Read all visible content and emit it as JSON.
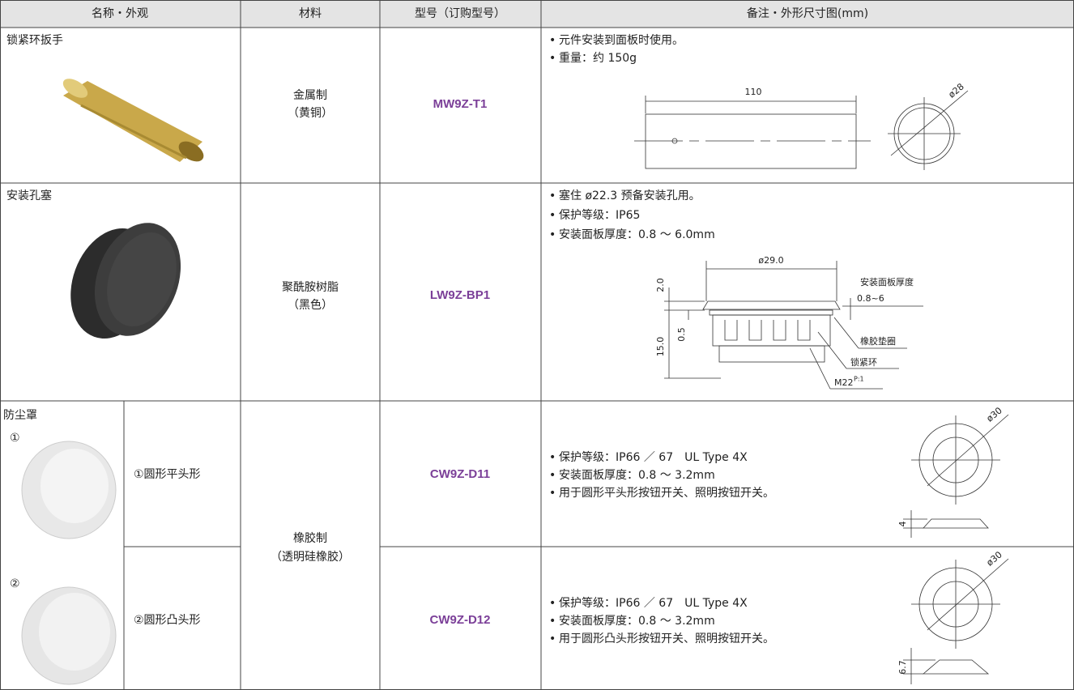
{
  "table": {
    "headers": [
      "名称・外观",
      "材料",
      "型号（订购型号）",
      "备注・外形尺寸图(mm)"
    ],
    "rows": [
      {
        "name": "锁紧环扳手",
        "material": [
          "金属制",
          "（黄铜）"
        ],
        "model": "MW9Z-T1",
        "notes": [
          "元件安装到面板时使用。",
          "重量：约 150g"
        ],
        "dims": [
          "110",
          "ø28"
        ]
      },
      {
        "name": "安装孔塞",
        "material": [
          "聚酰胺树脂",
          "（黑色）"
        ],
        "model": "LW9Z-BP1",
        "notes": [
          "塞住 ø22.3 预备安装孔用。",
          "保护等级：IP65",
          "安装面板厚度：0.8 ～ 6.0mm"
        ],
        "dims": [
          "ø29.0",
          "2.0",
          "0.5",
          "15.0",
          "安装面板厚度",
          "0.8~6",
          "橡胶垫圈",
          "锁紧环",
          "M22",
          "P:1"
        ]
      }
    ],
    "dust_cover": {
      "name": "防尘罩",
      "material": [
        "橡胶制",
        "（透明硅橡胶）"
      ],
      "items": [
        {
          "marker": "①",
          "name": "①圆形平头形",
          "model": "CW9Z-D11",
          "notes": [
            "保护等级：IP66 ／ 67　UL Type 4X",
            "安装面板厚度：0.8 ～ 3.2mm",
            "用于圆形平头形按钮开关、照明按钮开关。"
          ],
          "dims": [
            "ø30",
            "4"
          ]
        },
        {
          "marker": "②",
          "name": "②圆形凸头形",
          "model": "CW9Z-D12",
          "notes": [
            "保护等级：IP66 ／ 67　UL Type 4X",
            "安装面板厚度：0.8 ～ 3.2mm",
            "用于圆形凸头形按钮开关、照明按钮开关。"
          ],
          "dims": [
            "ø30",
            "6.7"
          ]
        }
      ]
    }
  }
}
